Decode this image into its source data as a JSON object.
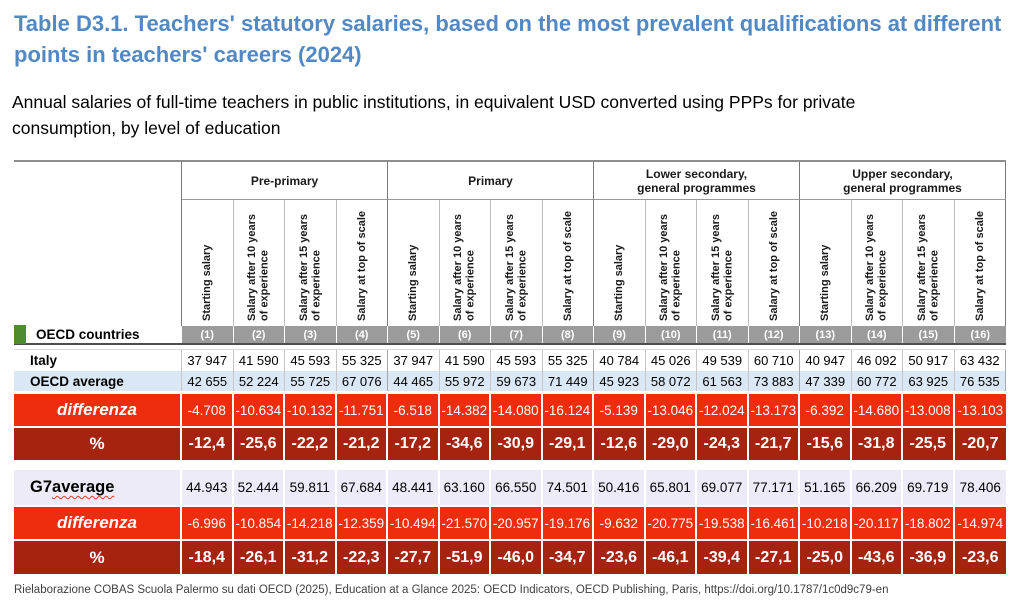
{
  "page": {
    "title_line1": "Table D3.1. Teachers' statutory salaries, based on the most prevalent qualifications at different",
    "title_line2": "points in teachers' careers (2024)",
    "subtitle": " Annual salaries of full-time teachers in public institutions, in equivalent USD converted using PPPs for private\nconsumption, by level of education",
    "footer": "Rielaborazione COBAS Scuola Palermo su dati OECD (2025), Education at a Glance 2025: OECD Indicators, OECD Publishing, Paris, https://doi.org/10.1787/1c0d9c79-en"
  },
  "colors": {
    "title_blue": "#5288C4",
    "band_gray": "#9B9B9B",
    "green_marker": "#4E8C2E",
    "oecd_average_row_blue": "#DAE7F4",
    "g7_row_lavender": "#ECEBF7",
    "differenza_red": "#EE2D0E",
    "percent_dark_red": "#A52310"
  },
  "chart_data": {
    "type": "table",
    "title": "Teachers' statutory salaries, based on the most prevalent qualifications at different points in teachers' careers (2024)",
    "corner_label": "OECD countries",
    "groups": [
      "Pre-primary",
      "Primary",
      "Lower secondary,\ngeneral programmes",
      "Upper secondary,\ngeneral programmes"
    ],
    "per_group_columns": [
      "Starting salary",
      "Salary after 10 years of experience",
      "Salary after 15 years of experience",
      "Salary at top of scale"
    ],
    "column_numbers": [
      "(1)",
      "(2)",
      "(3)",
      "(4)",
      "(5)",
      "(6)",
      "(7)",
      "(8)",
      "(9)",
      "(10)",
      "(11)",
      "(12)",
      "(13)",
      "(14)",
      "(15)",
      "(16)"
    ],
    "rows": [
      {
        "label": "Italy",
        "style": "italy",
        "values": [
          "37 947",
          "41 590",
          "45 593",
          "55 325",
          "37 947",
          "41 590",
          "45 593",
          "55 325",
          "40 784",
          "45 026",
          "49 539",
          "60 710",
          "40 947",
          "46 092",
          "50 917",
          "63 432"
        ]
      },
      {
        "label": "OECD average",
        "style": "oecd",
        "values": [
          "42 655",
          "52 224",
          "55 725",
          "67 076",
          "44 465",
          "55 972",
          "59 673",
          "71 449",
          "45 923",
          "58 072",
          "61 563",
          "73 883",
          "47 339",
          "60 772",
          "63 925",
          "76 535"
        ]
      },
      {
        "label": "differenza",
        "style": "diff",
        "values": [
          "-4.708",
          "-10.634",
          "-10.132",
          "-11.751",
          "-6.518",
          "-14.382",
          "-14.080",
          "-16.124",
          "-5.139",
          "-13.046",
          "-12.024",
          "-13.173",
          "-6.392",
          "-14.680",
          "-13.008",
          "-13.103"
        ]
      },
      {
        "label": "%",
        "style": "pct",
        "values": [
          "-12,4",
          "-25,6",
          "-22,2",
          "-21,2",
          "-17,2",
          "-34,6",
          "-30,9",
          "-29,1",
          "-12,6",
          "-29,0",
          "-24,3",
          "-21,7",
          "-15,6",
          "-31,8",
          "-25,5",
          "-20,7"
        ]
      },
      {
        "label": "G7 average",
        "style": "g7",
        "squiggle_word": "average",
        "values": [
          "44.943",
          "52.444",
          "59.811",
          "67.684",
          "48.441",
          "63.160",
          "66.550",
          "74.501",
          "50.416",
          "65.801",
          "69.077",
          "77.171",
          "51.165",
          "66.209",
          "69.719",
          "78.406"
        ]
      },
      {
        "label": "differenza",
        "style": "diff",
        "values": [
          "-6.996",
          "-10.854",
          "-14.218",
          "-12.359",
          "-10.494",
          "-21.570",
          "-20.957",
          "-19.176",
          "-9.632",
          "-20.775",
          "-19.538",
          "-16.461",
          "-10.218",
          "-20.117",
          "-18.802",
          "-14.974"
        ]
      },
      {
        "label": "%",
        "style": "pct2",
        "values": [
          "-18,4",
          "-26,1",
          "-31,2",
          "-22,3",
          "-27,7",
          "-51,9",
          "-46,0",
          "-34,7",
          "-23,6",
          "-46,1",
          "-39,4",
          "-27,1",
          "-25,0",
          "-43,6",
          "-36,9",
          "-23,6"
        ]
      }
    ]
  }
}
